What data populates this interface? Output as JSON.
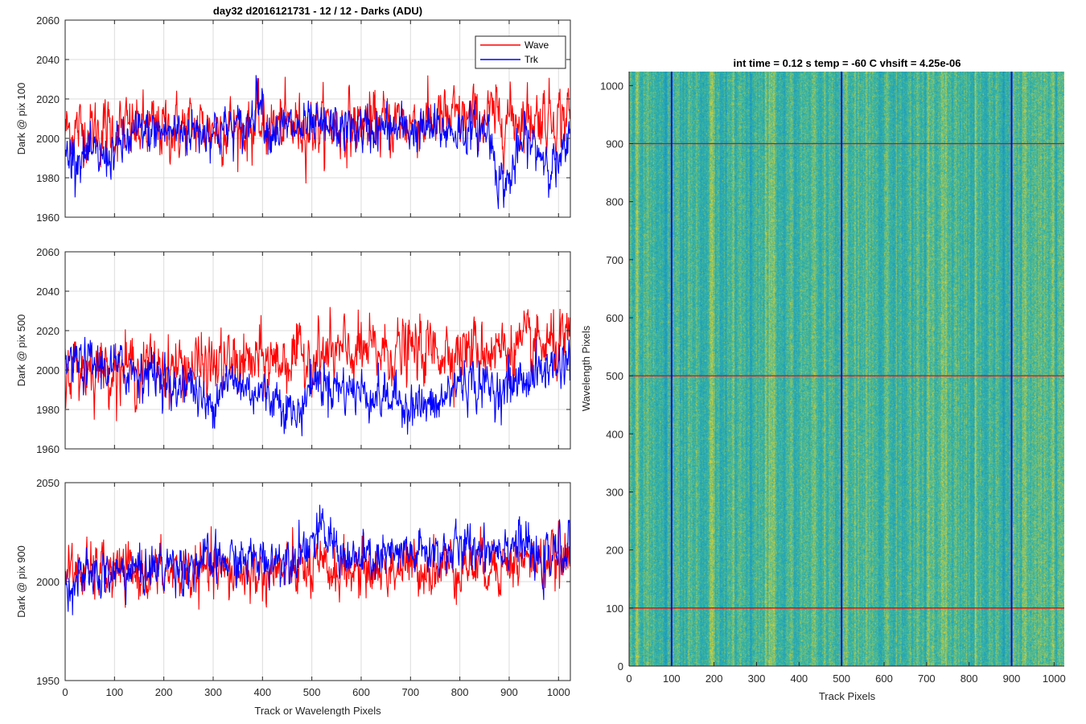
{
  "figure": {
    "title": "day32 d2016121731 - 12 / 12 - Darks (ADU)",
    "xlabel_left": "Track or Wavelength Pixels"
  },
  "legend": {
    "labels": [
      "Wave",
      "Trk"
    ],
    "colors": [
      "#ff0000",
      "#0000ff"
    ]
  },
  "chart_data": [
    {
      "type": "line",
      "ylabel": "Dark @ pix 100",
      "xlim": [
        0,
        1024
      ],
      "ylim": [
        1960,
        2060
      ],
      "xticks": [
        0,
        100,
        200,
        300,
        400,
        500,
        600,
        700,
        800,
        900,
        1000
      ],
      "yticks": [
        1960,
        1980,
        2000,
        2020,
        2040,
        2060
      ],
      "grid": true,
      "legend_position": "top-right",
      "series": [
        {
          "name": "Wave",
          "color": "#ff0000",
          "mean": 2006,
          "noise_sd": 8,
          "segments": [
            [
              0,
              2004
            ],
            [
              600,
              2007
            ],
            [
              850,
              2010
            ],
            [
              1024,
              2012
            ]
          ]
        },
        {
          "name": "Trk",
          "color": "#0000ff",
          "mean": 2002,
          "noise_sd": 6,
          "segments": [
            [
              0,
              1992
            ],
            [
              80,
              1990
            ],
            [
              150,
              2003
            ],
            [
              370,
              2005
            ],
            [
              390,
              2025
            ],
            [
              410,
              2005
            ],
            [
              860,
              2004
            ],
            [
              880,
              1978
            ],
            [
              900,
              1978
            ],
            [
              930,
              2000
            ],
            [
              1000,
              1985
            ],
            [
              1024,
              1998
            ]
          ]
        }
      ]
    },
    {
      "type": "line",
      "ylabel": "Dark @ pix 500",
      "xlim": [
        0,
        1024
      ],
      "ylim": [
        1960,
        2060
      ],
      "xticks": [
        0,
        100,
        200,
        300,
        400,
        500,
        600,
        700,
        800,
        900,
        1000
      ],
      "yticks": [
        1960,
        1980,
        2000,
        2020,
        2040,
        2060
      ],
      "grid": true,
      "series": [
        {
          "name": "Wave",
          "color": "#ff0000",
          "mean": 2006,
          "noise_sd": 8,
          "segments": [
            [
              0,
              2001
            ],
            [
              300,
              2002
            ],
            [
              600,
              2009
            ],
            [
              1024,
              2012
            ]
          ]
        },
        {
          "name": "Trk",
          "color": "#0000ff",
          "mean": 1998,
          "noise_sd": 6,
          "segments": [
            [
              0,
              2004
            ],
            [
              200,
              1998
            ],
            [
              220,
              1985
            ],
            [
              240,
              1998
            ],
            [
              290,
              1980
            ],
            [
              320,
              1995
            ],
            [
              440,
              1985
            ],
            [
              470,
              1975
            ],
            [
              500,
              1995
            ],
            [
              750,
              1980
            ],
            [
              800,
              1995
            ],
            [
              880,
              1990
            ],
            [
              1024,
              2006
            ]
          ]
        }
      ]
    },
    {
      "type": "line",
      "ylabel": "Dark @ pix 900",
      "xlim": [
        0,
        1024
      ],
      "ylim": [
        1950,
        2050
      ],
      "xticks": [
        0,
        100,
        200,
        300,
        400,
        500,
        600,
        700,
        800,
        900,
        1000
      ],
      "yticks": [
        1950,
        2000,
        2050
      ],
      "grid": true,
      "series": [
        {
          "name": "Wave",
          "color": "#ff0000",
          "mean": 2004,
          "noise_sd": 7,
          "segments": [
            [
              0,
              2005
            ],
            [
              300,
              2004
            ],
            [
              600,
              2006
            ],
            [
              1024,
              2011
            ]
          ]
        },
        {
          "name": "Trk",
          "color": "#0000ff",
          "mean": 2008,
          "noise_sd": 6,
          "segments": [
            [
              0,
              2000
            ],
            [
              200,
              2008
            ],
            [
              450,
              2012
            ],
            [
              520,
              2025
            ],
            [
              580,
              2010
            ],
            [
              930,
              2020
            ],
            [
              960,
              2008
            ],
            [
              1024,
              2018
            ]
          ]
        }
      ]
    },
    {
      "type": "heatmap",
      "title": "int time = 0.12 s    temp = -60 C    vhsift = 4.25e-06",
      "xlabel": "Track Pixels",
      "ylabel": "Wavelength Pixels",
      "xlim": [
        0,
        1024
      ],
      "ylim": [
        0,
        1024
      ],
      "xticks": [
        0,
        100,
        200,
        300,
        400,
        500,
        600,
        700,
        800,
        900,
        1000
      ],
      "yticks": [
        0,
        100,
        200,
        300,
        400,
        500,
        600,
        700,
        800,
        900,
        1000
      ],
      "colormap": "parula",
      "color_range": "green-cyan noise, brighter (yellow-green) toward right edge",
      "vertical_markers": {
        "color": "#0000ff",
        "x": [
          100,
          500,
          900
        ]
      },
      "horizontal_markers": {
        "color": "#ff0000",
        "y": [
          100,
          500,
          900
        ]
      }
    }
  ]
}
